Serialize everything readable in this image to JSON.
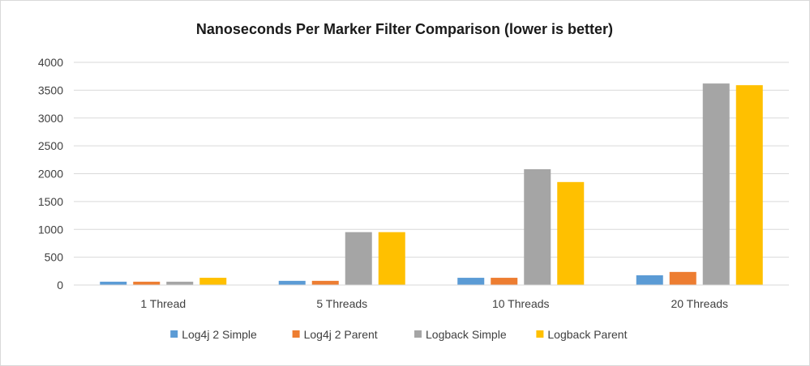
{
  "chart_data": {
    "type": "bar",
    "title": "Nanoseconds Per Marker Filter Comparison  (lower is better)",
    "xlabel": "",
    "ylabel": "",
    "categories": [
      "1 Thread",
      "5 Threads",
      "10 Threads",
      "20 Threads"
    ],
    "ylim": [
      0,
      4000
    ],
    "yticks": [
      0,
      500,
      1000,
      1500,
      2000,
      2500,
      3000,
      3500,
      4000
    ],
    "grid": true,
    "legend_position": "bottom",
    "series": [
      {
        "name": "Log4j 2 Simple",
        "color": "#5b9bd5",
        "values": [
          60,
          75,
          130,
          175
        ]
      },
      {
        "name": "Log4j 2 Parent",
        "color": "#ed7d31",
        "values": [
          60,
          75,
          130,
          235
        ]
      },
      {
        "name": "Logback Simple",
        "color": "#a5a5a5",
        "values": [
          60,
          950,
          2080,
          3620
        ]
      },
      {
        "name": "Logback Parent",
        "color": "#ffc000",
        "values": [
          130,
          950,
          1850,
          3590
        ]
      }
    ]
  }
}
